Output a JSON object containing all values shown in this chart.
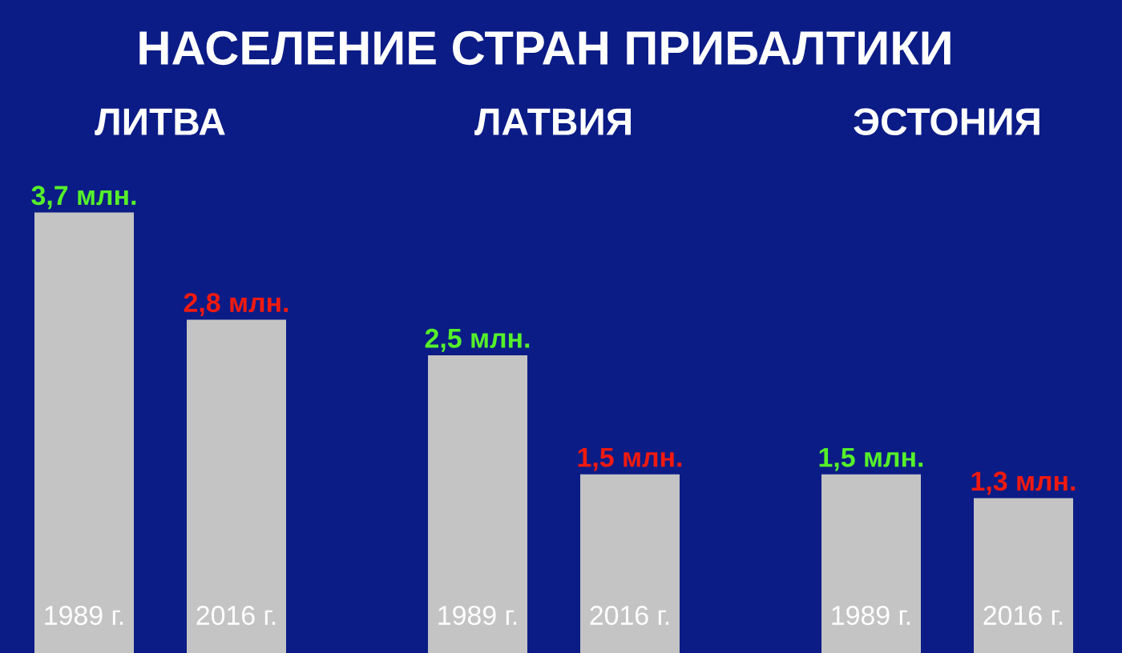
{
  "chart_data": [
    {
      "type": "bar",
      "title": "ЛИТВА",
      "annotations": [
        "НАСЕЛЕНИЕ СТРАН ПРИБАЛТИКИ"
      ],
      "categories": [
        "1989 г.",
        "2016 г."
      ],
      "values": [
        3.7,
        2.8
      ],
      "value_labels": [
        "3,7 млн.",
        "2,8 млн."
      ],
      "colors": [
        "#c4c4c4",
        "#c4c4c4"
      ]
    },
    {
      "type": "bar",
      "title": "ЛАТВИЯ",
      "categories": [
        "1989 г.",
        "2016 г."
      ],
      "values": [
        2.5,
        1.5
      ],
      "value_labels": [
        "2,5 млн.",
        "1,5 млн."
      ],
      "colors": [
        "#c4c4c4",
        "#c4c4c4"
      ]
    },
    {
      "type": "bar",
      "title": "ЭСТОНИЯ",
      "categories": [
        "1989 г.",
        "2016 г."
      ],
      "values": [
        1.5,
        1.3
      ],
      "value_labels": [
        "1,5 млн.",
        "1,3 млн."
      ],
      "colors": [
        "#c4c4c4",
        "#c4c4c4"
      ]
    }
  ]
}
